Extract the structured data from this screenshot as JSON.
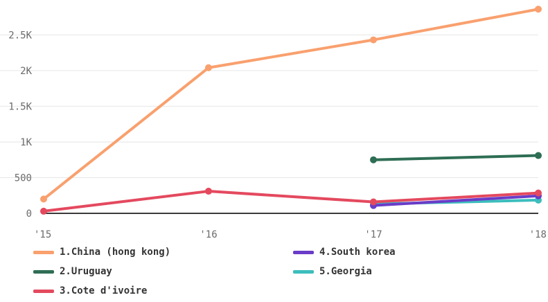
{
  "chart_data": {
    "type": "line",
    "x": [
      "'15",
      "'16",
      "'17",
      "'18"
    ],
    "y_ticks": [
      "0",
      "500",
      "1K",
      "1.5K",
      "2K",
      "2.5K"
    ],
    "y_tick_values": [
      0,
      500,
      1000,
      1500,
      2000,
      2500
    ],
    "ylim": [
      0,
      2950
    ],
    "grid": true,
    "legend_position": "bottom",
    "series": [
      {
        "name": "1.China (hong kong)",
        "color": "#F9A06E",
        "values": [
          200,
          2040,
          2430,
          2860
        ]
      },
      {
        "name": "2.Uruguay",
        "color": "#2E6E55",
        "values": [
          null,
          null,
          750,
          810
        ]
      },
      {
        "name": "3.Cote d'ivoire",
        "color": "#E4495E",
        "values": [
          30,
          310,
          160,
          285
        ]
      },
      {
        "name": "4.South korea",
        "color": "#6A3CC8",
        "values": [
          null,
          null,
          110,
          245
        ]
      },
      {
        "name": "5.Georgia",
        "color": "#3DBDBD",
        "values": [
          null,
          null,
          130,
          185
        ]
      }
    ]
  }
}
